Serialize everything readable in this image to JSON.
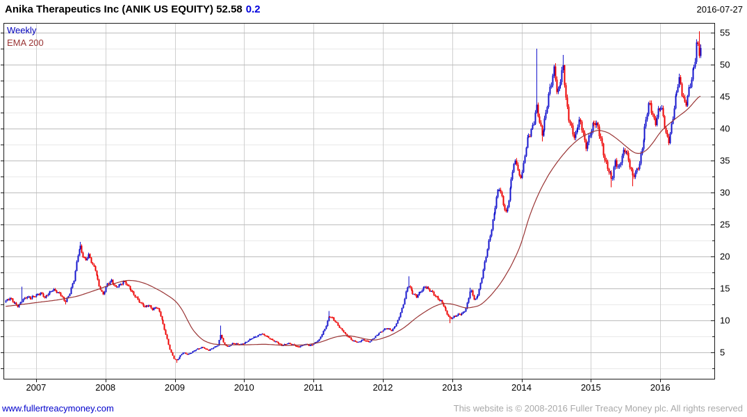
{
  "title": {
    "instrument": "Anika Therapeutics Inc (ANIK US EQUITY) 52.58",
    "change": "0.2",
    "date": "2016-07-27"
  },
  "legend": {
    "series_label": "Weekly",
    "ema_label": "EMA 200"
  },
  "footer": {
    "link": "www.fullertreacymoney.com",
    "copyright": "This website is © 2008-2016 Fuller Treacy Money plc. All rights reserved"
  },
  "colors": {
    "up": "#1414cd",
    "down": "#ee0000",
    "ema": "#993333",
    "grid_major": "#bcbcbc",
    "grid_minor": "#e9e9e9",
    "grid_year": "#cfcfcf",
    "border": "#1a1a1a",
    "axis_text": "#000000"
  },
  "chart_data": {
    "type": "candlestick",
    "title": "Anika Therapeutics Inc (ANIK US EQUITY)",
    "interval": "Weekly",
    "overlay": "EMA 200",
    "last_price": 52.58,
    "change": 0.2,
    "as_of_date": "2016-07-27",
    "x_axis": {
      "min": 2006.53,
      "max": 2016.78,
      "ticks": [
        2007,
        2008,
        2009,
        2010,
        2011,
        2012,
        2013,
        2014,
        2015,
        2016
      ]
    },
    "y_axis": {
      "min": 0.9,
      "max": 56.5,
      "major_ticks": [
        5,
        10,
        15,
        20,
        25,
        30,
        35,
        40,
        45,
        50,
        55
      ],
      "minor_step": 2.5
    },
    "price_path": [
      [
        2006.56,
        13.0
      ],
      [
        2006.62,
        13.6
      ],
      [
        2006.68,
        12.8
      ],
      [
        2006.74,
        12.1
      ],
      [
        2006.8,
        13.3
      ],
      [
        2006.86,
        13.8
      ],
      [
        2006.92,
        13.4
      ],
      [
        2007.0,
        14.0
      ],
      [
        2007.06,
        14.4
      ],
      [
        2007.12,
        13.5
      ],
      [
        2007.18,
        14.2
      ],
      [
        2007.24,
        15.0
      ],
      [
        2007.3,
        14.4
      ],
      [
        2007.36,
        13.8
      ],
      [
        2007.42,
        13.0
      ],
      [
        2007.48,
        14.2
      ],
      [
        2007.54,
        16.2
      ],
      [
        2007.6,
        20.5
      ],
      [
        2007.63,
        21.9
      ],
      [
        2007.67,
        20.2
      ],
      [
        2007.71,
        19.2
      ],
      [
        2007.75,
        20.2
      ],
      [
        2007.8,
        19.0
      ],
      [
        2007.85,
        18.0
      ],
      [
        2007.9,
        15.5
      ],
      [
        2007.96,
        13.9
      ],
      [
        2008.02,
        15.8
      ],
      [
        2008.08,
        16.2
      ],
      [
        2008.14,
        15.1
      ],
      [
        2008.2,
        15.6
      ],
      [
        2008.26,
        16.2
      ],
      [
        2008.32,
        15.3
      ],
      [
        2008.38,
        14.5
      ],
      [
        2008.44,
        13.7
      ],
      [
        2008.5,
        12.7
      ],
      [
        2008.56,
        12.1
      ],
      [
        2008.62,
        12.5
      ],
      [
        2008.68,
        11.7
      ],
      [
        2008.74,
        12.1
      ],
      [
        2008.8,
        10.6
      ],
      [
        2008.86,
        8.2
      ],
      [
        2008.92,
        5.6
      ],
      [
        2008.98,
        4.1
      ],
      [
        2009.02,
        3.8
      ],
      [
        2009.06,
        4.3
      ],
      [
        2009.12,
        5.0
      ],
      [
        2009.18,
        4.7
      ],
      [
        2009.24,
        5.1
      ],
      [
        2009.32,
        5.5
      ],
      [
        2009.4,
        5.9
      ],
      [
        2009.48,
        5.3
      ],
      [
        2009.56,
        5.8
      ],
      [
        2009.62,
        6.2
      ],
      [
        2009.66,
        7.9
      ],
      [
        2009.7,
        6.3
      ],
      [
        2009.76,
        5.9
      ],
      [
        2009.84,
        6.5
      ],
      [
        2009.92,
        6.2
      ],
      [
        2010.0,
        6.5
      ],
      [
        2010.08,
        7.0
      ],
      [
        2010.16,
        7.5
      ],
      [
        2010.24,
        8.0
      ],
      [
        2010.32,
        7.5
      ],
      [
        2010.4,
        7.0
      ],
      [
        2010.48,
        6.5
      ],
      [
        2010.54,
        6.1
      ],
      [
        2010.62,
        6.5
      ],
      [
        2010.7,
        6.2
      ],
      [
        2010.78,
        5.9
      ],
      [
        2010.86,
        6.3
      ],
      [
        2010.94,
        6.1
      ],
      [
        2011.0,
        6.4
      ],
      [
        2011.08,
        7.0
      ],
      [
        2011.16,
        8.8
      ],
      [
        2011.22,
        10.8
      ],
      [
        2011.28,
        10.2
      ],
      [
        2011.34,
        9.4
      ],
      [
        2011.4,
        8.6
      ],
      [
        2011.48,
        7.6
      ],
      [
        2011.56,
        6.9
      ],
      [
        2011.64,
        6.6
      ],
      [
        2011.72,
        7.0
      ],
      [
        2011.8,
        6.7
      ],
      [
        2011.88,
        7.4
      ],
      [
        2011.96,
        8.2
      ],
      [
        2012.04,
        8.8
      ],
      [
        2012.12,
        8.4
      ],
      [
        2012.2,
        9.6
      ],
      [
        2012.28,
        12.0
      ],
      [
        2012.36,
        15.8
      ],
      [
        2012.42,
        14.4
      ],
      [
        2012.48,
        13.6
      ],
      [
        2012.54,
        14.6
      ],
      [
        2012.6,
        15.4
      ],
      [
        2012.66,
        14.8
      ],
      [
        2012.72,
        14.3
      ],
      [
        2012.78,
        13.6
      ],
      [
        2012.84,
        12.9
      ],
      [
        2012.9,
        11.6
      ],
      [
        2012.96,
        10.4
      ],
      [
        2013.02,
        10.6
      ],
      [
        2013.08,
        10.9
      ],
      [
        2013.14,
        11.1
      ],
      [
        2013.2,
        12.0
      ],
      [
        2013.26,
        14.8
      ],
      [
        2013.32,
        13.1
      ],
      [
        2013.38,
        14.5
      ],
      [
        2013.44,
        17.5
      ],
      [
        2013.5,
        21.0
      ],
      [
        2013.56,
        24.5
      ],
      [
        2013.62,
        28.0
      ],
      [
        2013.67,
        30.8
      ],
      [
        2013.72,
        29.0
      ],
      [
        2013.77,
        26.8
      ],
      [
        2013.82,
        29.5
      ],
      [
        2013.87,
        33.5
      ],
      [
        2013.92,
        35.2
      ],
      [
        2013.97,
        32.2
      ],
      [
        2014.02,
        34.0
      ],
      [
        2014.07,
        37.8
      ],
      [
        2014.12,
        39.3
      ],
      [
        2014.17,
        41.0
      ],
      [
        2014.21,
        43.5
      ],
      [
        2014.25,
        41.0
      ],
      [
        2014.29,
        38.8
      ],
      [
        2014.34,
        42.0
      ],
      [
        2014.38,
        45.0
      ],
      [
        2014.43,
        47.2
      ],
      [
        2014.47,
        49.2
      ],
      [
        2014.51,
        45.2
      ],
      [
        2014.55,
        47.5
      ],
      [
        2014.6,
        49.8
      ],
      [
        2014.64,
        44.0
      ],
      [
        2014.68,
        41.2
      ],
      [
        2014.72,
        40.0
      ],
      [
        2014.76,
        38.8
      ],
      [
        2014.8,
        40.3
      ],
      [
        2014.84,
        41.0
      ],
      [
        2014.88,
        39.5
      ],
      [
        2014.92,
        37.2
      ],
      [
        2014.96,
        38.6
      ],
      [
        2015.0,
        39.8
      ],
      [
        2015.05,
        40.8
      ],
      [
        2015.1,
        40.2
      ],
      [
        2015.15,
        38.0
      ],
      [
        2015.2,
        34.8
      ],
      [
        2015.25,
        33.2
      ],
      [
        2015.3,
        32.0
      ],
      [
        2015.35,
        35.2
      ],
      [
        2015.4,
        33.6
      ],
      [
        2015.45,
        35.8
      ],
      [
        2015.5,
        36.8
      ],
      [
        2015.55,
        35.0
      ],
      [
        2015.6,
        32.4
      ],
      [
        2015.65,
        33.0
      ],
      [
        2015.7,
        34.8
      ],
      [
        2015.75,
        38.5
      ],
      [
        2015.8,
        42.0
      ],
      [
        2015.84,
        43.8
      ],
      [
        2015.88,
        42.3
      ],
      [
        2015.92,
        40.9
      ],
      [
        2015.96,
        42.8
      ],
      [
        2016.0,
        43.4
      ],
      [
        2016.04,
        41.8
      ],
      [
        2016.08,
        39.0
      ],
      [
        2016.12,
        38.3
      ],
      [
        2016.16,
        40.8
      ],
      [
        2016.2,
        43.5
      ],
      [
        2016.24,
        46.0
      ],
      [
        2016.28,
        47.8
      ],
      [
        2016.32,
        45.2
      ],
      [
        2016.36,
        43.8
      ],
      [
        2016.4,
        45.5
      ],
      [
        2016.44,
        47.2
      ],
      [
        2016.48,
        49.6
      ],
      [
        2016.51,
        51.5
      ],
      [
        2016.53,
        54.4
      ],
      [
        2016.56,
        52.1
      ],
      [
        2016.58,
        52.58
      ]
    ],
    "spike_highs": [
      [
        2006.8,
        15.3
      ],
      [
        2007.63,
        22.3
      ],
      [
        2009.66,
        9.2
      ],
      [
        2011.22,
        11.5
      ],
      [
        2012.36,
        16.9
      ],
      [
        2013.26,
        15.1
      ],
      [
        2014.21,
        52.5
      ],
      [
        2014.6,
        51.5
      ],
      [
        2016.56,
        55.2
      ]
    ],
    "spike_lows": [
      [
        2007.42,
        12.5
      ],
      [
        2009.02,
        3.4
      ],
      [
        2012.96,
        9.6
      ],
      [
        2014.29,
        38.0
      ],
      [
        2015.3,
        30.8
      ],
      [
        2015.6,
        31.0
      ],
      [
        2016.12,
        37.4
      ]
    ],
    "ema_path": [
      [
        2006.56,
        12.2
      ],
      [
        2007.0,
        12.8
      ],
      [
        2007.3,
        13.2
      ],
      [
        2007.6,
        13.8
      ],
      [
        2007.9,
        14.9
      ],
      [
        2008.1,
        15.7
      ],
      [
        2008.3,
        16.3
      ],
      [
        2008.45,
        16.2
      ],
      [
        2008.6,
        15.7
      ],
      [
        2008.8,
        14.6
      ],
      [
        2009.0,
        13.2
      ],
      [
        2009.1,
        11.9
      ],
      [
        2009.25,
        8.6
      ],
      [
        2009.4,
        6.9
      ],
      [
        2009.55,
        6.3
      ],
      [
        2009.75,
        6.2
      ],
      [
        2010.0,
        6.2
      ],
      [
        2010.3,
        6.3
      ],
      [
        2010.6,
        6.1
      ],
      [
        2010.9,
        6.2
      ],
      [
        2011.1,
        6.6
      ],
      [
        2011.3,
        7.4
      ],
      [
        2011.45,
        7.7
      ],
      [
        2011.6,
        7.5
      ],
      [
        2011.75,
        7.1
      ],
      [
        2011.9,
        6.9
      ],
      [
        2012.1,
        7.6
      ],
      [
        2012.3,
        8.8
      ],
      [
        2012.5,
        10.6
      ],
      [
        2012.7,
        12.0
      ],
      [
        2012.85,
        12.7
      ],
      [
        2013.0,
        12.6
      ],
      [
        2013.2,
        11.9
      ],
      [
        2013.4,
        12.3
      ],
      [
        2013.55,
        13.8
      ],
      [
        2013.7,
        15.8
      ],
      [
        2013.85,
        18.5
      ],
      [
        2014.0,
        22.0
      ],
      [
        2014.1,
        26.0
      ],
      [
        2014.25,
        30.0
      ],
      [
        2014.4,
        33.0
      ],
      [
        2014.55,
        35.3
      ],
      [
        2014.7,
        37.2
      ],
      [
        2014.85,
        38.6
      ],
      [
        2015.0,
        39.4
      ],
      [
        2015.1,
        39.8
      ],
      [
        2015.25,
        39.4
      ],
      [
        2015.4,
        38.2
      ],
      [
        2015.55,
        36.8
      ],
      [
        2015.65,
        36.0
      ],
      [
        2015.78,
        36.3
      ],
      [
        2015.9,
        37.8
      ],
      [
        2016.0,
        39.5
      ],
      [
        2016.1,
        40.5
      ],
      [
        2016.25,
        41.8
      ],
      [
        2016.4,
        43.0
      ],
      [
        2016.5,
        44.3
      ],
      [
        2016.58,
        45.3
      ]
    ]
  }
}
